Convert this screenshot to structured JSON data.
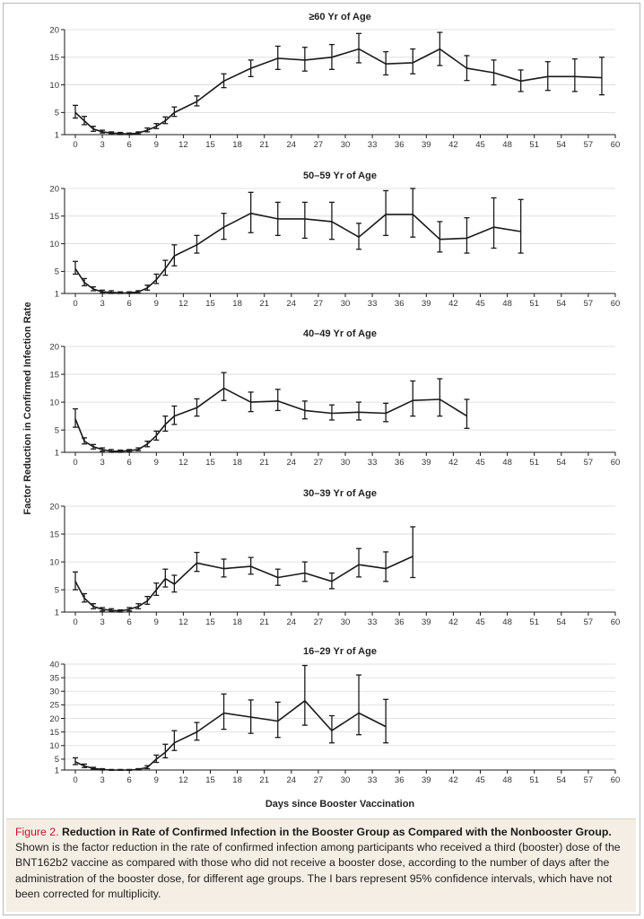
{
  "figure": {
    "y_axis_label": "Factor Reduction in Confirmed Infection Rate",
    "x_axis_label": "Days since Booster Vaccination",
    "x_ticks": [
      "0",
      "3",
      "6",
      "9",
      "12",
      "15",
      "18",
      "21",
      "24",
      "27",
      "30",
      "33",
      "36",
      "39",
      "42",
      "45",
      "48",
      "51",
      "54",
      "57",
      "60"
    ]
  },
  "caption": {
    "label": "Figure 2.",
    "heading": "Reduction in Rate of Confirmed Infection in the Booster Group as Compared with the Nonbooster Group.",
    "body": "Shown is the factor reduction in the rate of confirmed infection among participants who received a third (booster) dose of the BNT162b2 vaccine as compared with those who did not receive a booster dose, according to the number of days after the administration of the booster dose, for different age groups. The I bars represent 95% confidence intervals, which have not been corrected for multiplicity."
  },
  "colors": {
    "line": "#1a1a1a",
    "grid": "#d9d9d9",
    "caption_bg": "#f4eee4",
    "caption_label": "#c8102e"
  },
  "chart_data": [
    {
      "type": "line",
      "title": "≥60 Yr of Age",
      "xlim": [
        0,
        60
      ],
      "ylim": [
        1,
        20
      ],
      "y_ticks": [
        1,
        5,
        10,
        15,
        20
      ],
      "series": [
        {
          "x": [
            0,
            1,
            2,
            3,
            4,
            5,
            6,
            7,
            8,
            9,
            10,
            11,
            13.5,
            16.5,
            19.5,
            22.5,
            25.5,
            28.5,
            31.5,
            34.5,
            37.5,
            40.5,
            43.5,
            46.5,
            49.5,
            52.5,
            55.5,
            58.5
          ],
          "y": [
            5,
            3.5,
            2,
            1.5,
            1.3,
            1.2,
            1.1,
            1.3,
            1.8,
            2.5,
            3.5,
            5,
            7,
            10.7,
            13,
            14.8,
            14.5,
            15,
            16.5,
            13.8,
            14,
            16.5,
            13,
            12.2,
            10.7,
            11.5,
            11.5,
            11.3
          ],
          "lower": [
            4,
            2.8,
            1.6,
            1.3,
            1.1,
            1.0,
            1.0,
            1.1,
            1.5,
            2.1,
            3.0,
            4.3,
            6.2,
            9.5,
            11.5,
            12.8,
            12.5,
            12.8,
            14,
            11.8,
            12,
            13.5,
            10.8,
            10,
            8.8,
            9,
            8.8,
            8.2
          ],
          "upper": [
            6.3,
            4.3,
            2.5,
            1.8,
            1.5,
            1.4,
            1.3,
            1.5,
            2.2,
            3.0,
            4.2,
            6,
            8,
            12,
            14.5,
            17,
            16.8,
            17.3,
            19.3,
            16,
            16.5,
            19.5,
            15.3,
            14.5,
            12.7,
            14.2,
            14.7,
            15
          ]
        }
      ]
    },
    {
      "type": "line",
      "title": "50–59 Yr of Age",
      "xlim": [
        0,
        60
      ],
      "ylim": [
        1,
        20
      ],
      "y_ticks": [
        1,
        5,
        10,
        15,
        20
      ],
      "series": [
        {
          "x": [
            0,
            1,
            2,
            3,
            4,
            5,
            6,
            7,
            8,
            9,
            10,
            11,
            13.5,
            16.5,
            19.5,
            22.5,
            25.5,
            28.5,
            31.5,
            34.5,
            37.5,
            40.5,
            43.5,
            46.5,
            49.5
          ],
          "y": [
            5.5,
            3,
            1.8,
            1.3,
            1.2,
            1.1,
            1.1,
            1.3,
            2,
            3.5,
            5.5,
            7.8,
            9.8,
            13,
            15.5,
            14.5,
            14.5,
            14,
            11.2,
            15.3,
            15.3,
            10.8,
            11,
            13,
            12.2
          ],
          "lower": [
            4.5,
            2.4,
            1.5,
            1.1,
            1.0,
            1.0,
            1.0,
            1.1,
            1.6,
            2.8,
            4.3,
            6,
            8.3,
            10.8,
            12,
            11.5,
            11,
            10.8,
            9,
            11.5,
            11.2,
            8.5,
            8.3,
            9.2,
            8.3
          ],
          "upper": [
            6.8,
            3.7,
            2.2,
            1.6,
            1.5,
            1.3,
            1.3,
            1.5,
            2.5,
            4.5,
            7,
            9.8,
            11.5,
            15.5,
            19.3,
            17.5,
            17.5,
            17.5,
            13.7,
            19.6,
            20,
            14,
            14.7,
            18.3,
            18
          ]
        }
      ]
    },
    {
      "type": "line",
      "title": "40–49 Yr of Age",
      "xlim": [
        0,
        60
      ],
      "ylim": [
        1,
        20
      ],
      "y_ticks": [
        1,
        5,
        10,
        15,
        20
      ],
      "series": [
        {
          "x": [
            0,
            1,
            2,
            3,
            4,
            5,
            6,
            7,
            8,
            9,
            10,
            11,
            13.5,
            16.5,
            19.5,
            22.5,
            25.5,
            28.5,
            31.5,
            34.5,
            37.5,
            40.5,
            43.5
          ],
          "y": [
            7,
            3,
            2,
            1.5,
            1.2,
            1.2,
            1.3,
            1.5,
            2.5,
            4,
            6,
            7.5,
            9,
            12.5,
            10,
            10.2,
            8.5,
            8,
            8.2,
            8,
            10.3,
            10.5,
            7.5
          ],
          "lower": [
            5.5,
            2.5,
            1.6,
            1.2,
            1.0,
            1.0,
            1.1,
            1.3,
            2.0,
            3.2,
            4.8,
            6,
            7.5,
            10.3,
            8.3,
            8.5,
            7,
            6.8,
            6.8,
            6.5,
            7.5,
            7.5,
            5.3
          ],
          "upper": [
            8.8,
            3.6,
            2.4,
            1.8,
            1.5,
            1.4,
            1.5,
            1.8,
            3.0,
            4.8,
            7.5,
            9.3,
            10.6,
            15.3,
            11.8,
            12.3,
            10.2,
            9.5,
            10,
            9.8,
            13.8,
            14.2,
            10.5
          ]
        }
      ]
    },
    {
      "type": "line",
      "title": "30–39 Yr of Age",
      "xlim": [
        0,
        60
      ],
      "ylim": [
        1,
        20
      ],
      "y_ticks": [
        1,
        5,
        10,
        15,
        20
      ],
      "series": [
        {
          "x": [
            0,
            1,
            2,
            3,
            4,
            5,
            6,
            7,
            8,
            9,
            10,
            11,
            13.5,
            16.5,
            19.5,
            22.5,
            25.5,
            28.5,
            31.5,
            34.5,
            37.5
          ],
          "y": [
            6.5,
            3.5,
            2,
            1.5,
            1.3,
            1.2,
            1.5,
            2,
            3,
            5,
            7,
            6,
            9.8,
            8.8,
            9.2,
            7.2,
            8,
            6.5,
            9.5,
            8.8,
            11
          ],
          "lower": [
            5,
            2.8,
            1.6,
            1.2,
            1.1,
            1.0,
            1.2,
            1.6,
            2.4,
            4,
            5.5,
            4.6,
            8.3,
            7.3,
            7.8,
            5.8,
            6.5,
            5.2,
            7.3,
            6.5,
            7.2
          ],
          "upper": [
            8.2,
            4.3,
            2.5,
            1.8,
            1.6,
            1.4,
            1.8,
            2.5,
            3.8,
            6.2,
            8.7,
            7.6,
            11.7,
            10.5,
            10.8,
            8.7,
            10,
            8,
            12.4,
            11.8,
            16.3
          ]
        }
      ]
    },
    {
      "type": "line",
      "title": "16–29 Yr of Age",
      "xlim": [
        0,
        60
      ],
      "ylim": [
        1,
        40
      ],
      "y_ticks": [
        1,
        5,
        10,
        15,
        20,
        25,
        30,
        35,
        40
      ],
      "series": [
        {
          "x": [
            0,
            1,
            2,
            3,
            4,
            5,
            6,
            7,
            8,
            9,
            10,
            11,
            13.5,
            16.5,
            19.5,
            22.5,
            25.5,
            28.5,
            31.5,
            34.5
          ],
          "y": [
            4,
            2.5,
            1.6,
            1.2,
            1.0,
            1.0,
            1.0,
            1.2,
            2,
            5,
            7.5,
            11,
            15,
            22,
            20.5,
            19,
            26.5,
            15.5,
            22,
            17
          ],
          "lower": [
            3,
            1.9,
            1.3,
            1.0,
            0.9,
            0.9,
            0.9,
            1.0,
            1.5,
            3.8,
            5.5,
            8.2,
            12,
            16,
            14.5,
            13,
            17.5,
            11,
            14,
            11
          ],
          "upper": [
            5.5,
            3.2,
            2.0,
            1.5,
            1.2,
            1.2,
            1.2,
            1.5,
            2.6,
            6.5,
            10.5,
            15.5,
            18.5,
            29,
            26.8,
            26,
            39.5,
            21,
            36,
            27
          ]
        }
      ]
    }
  ]
}
